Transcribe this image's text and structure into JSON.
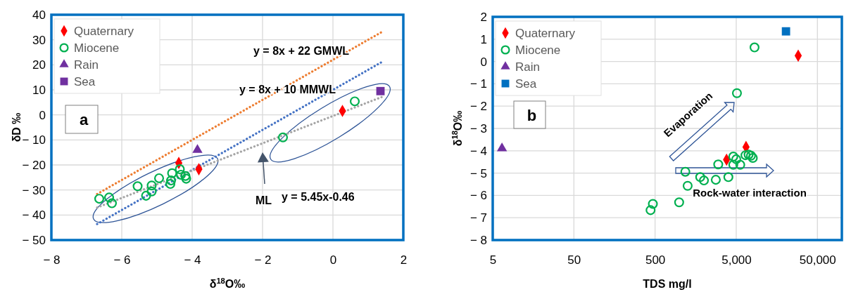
{
  "chart_data": [
    {
      "type": "scatter",
      "xlabel": "δ$^{18}$O‰",
      "ylabel": "δD ‰",
      "xlim": [
        -8,
        2
      ],
      "ylim": [
        -50,
        40
      ],
      "xticks": [
        {
          "value": -8,
          "label": "− 8"
        },
        {
          "value": -6,
          "label": "− 6"
        },
        {
          "value": -4,
          "label": "− 4"
        },
        {
          "value": -2,
          "label": "− 2"
        },
        0,
        2
      ],
      "yticks": [
        {
          "value": -50,
          "label": "− 50"
        },
        {
          "value": -40,
          "label": "− 40"
        },
        {
          "value": -30,
          "label": "− 30"
        },
        {
          "value": -20,
          "label": "− 20"
        },
        {
          "value": -10,
          "label": "− 10"
        },
        0,
        10,
        20,
        30,
        40
      ],
      "grid": true,
      "legend": "top left",
      "series": [
        {
          "name": "Quaternary",
          "color": "#ff0000",
          "marker": "diamond",
          "x": [
            -4.38,
            -3.81,
            0.27
          ],
          "values": [
            -19.2,
            -21.7,
            1.6
          ]
        },
        {
          "name": "Miocene",
          "color": "#00b050",
          "marker": "circle",
          "x": [
            -6.64,
            -6.36,
            -6.28,
            -5.55,
            -5.31,
            -5.15,
            -5.15,
            -4.94,
            -4.6,
            -4.57,
            -4.62,
            -4.35,
            -4.32,
            -4.19,
            -4.17,
            -1.42,
            0.62
          ],
          "values": [
            -33.5,
            -33,
            -35.3,
            -28.5,
            -32.3,
            -28.2,
            -30.6,
            -25.3,
            -26.2,
            -23.3,
            -27.6,
            -21.7,
            -23.9,
            -24.4,
            -25.5,
            -9,
            5.4
          ]
        },
        {
          "name": "Rain",
          "color": "#7030a0",
          "marker": "triangle",
          "x": [
            -3.85
          ],
          "values": [
            -14
          ]
        },
        {
          "name": "Sea",
          "color": "#7030a0",
          "marker": "square",
          "x": [
            1.35
          ],
          "values": [
            9.5
          ]
        },
        {
          "type": "line",
          "color": "#ed7d31",
          "line_style": "dotted",
          "x": [
            -6.7,
            1.4
          ],
          "values": [
            -31.6,
            33.2
          ]
        },
        {
          "type": "line",
          "color": "#4472c4",
          "line_style": "dotted",
          "x": [
            -6.7,
            1.4
          ],
          "values": [
            -43.6,
            21.2
          ]
        },
        {
          "type": "line",
          "color": "#a5a5a5",
          "line_style": "dotted",
          "x": [
            -6.7,
            1.4
          ],
          "values": [
            -37,
            7.2
          ]
        }
      ],
      "annotations": [
        "y = 8x + 22   GMWL",
        "y = 8x + 10  MMWL",
        "ML",
        "y = 5.45x-0.46",
        "a"
      ]
    },
    {
      "type": "scatter",
      "xlabel": "TDS mg/l",
      "ylabel": "δ$^{18}$O‰",
      "log": "x",
      "xlim": [
        5,
        100000
      ],
      "ylim": [
        -8,
        2
      ],
      "xticks": [
        5,
        50,
        500,
        {
          "value": 5000,
          "label": "5,000"
        },
        {
          "value": 50000,
          "label": "50,000"
        }
      ],
      "yticks": [
        {
          "value": -8,
          "label": "− 8"
        },
        {
          "value": -7,
          "label": "− 7"
        },
        {
          "value": -6,
          "label": "− 6"
        },
        {
          "value": -5,
          "label": "− 5"
        },
        {
          "value": -4,
          "label": "− 4"
        },
        {
          "value": -3,
          "label": "− 3"
        },
        {
          "value": -2,
          "label": "− 2"
        },
        {
          "value": -1,
          "label": "− 1"
        },
        0,
        1,
        2
      ],
      "grid": true,
      "legend": "top left",
      "series": [
        {
          "name": "Quaternary",
          "color": "#ff0000",
          "marker": "diamond",
          "x": [
            3800,
            6600,
            29000
          ],
          "values": [
            -4.4,
            -3.83,
            0.26
          ]
        },
        {
          "name": "Miocene",
          "color": "#00b050",
          "marker": "circle",
          "x": [
            8400,
            5100,
            440,
            470,
            990,
            1180,
            1260,
            1800,
            2000,
            2800,
            3000,
            4000,
            4600,
            4600,
            5000,
            5600,
            6500,
            7100,
            7600,
            8000
          ],
          "values": [
            0.63,
            -1.42,
            -6.66,
            -6.38,
            -6.31,
            -4.94,
            -5.57,
            -5.18,
            -5.33,
            -5.3,
            -4.61,
            -5.18,
            -4.26,
            -4.63,
            -4.38,
            -4.63,
            -4.2,
            -4.17,
            -4.22,
            -4.32
          ]
        },
        {
          "name": "Rain",
          "color": "#7030a0",
          "marker": "triangle",
          "x": [
            6.5
          ],
          "values": [
            -3.89
          ]
        },
        {
          "name": "Sea",
          "color": "#0070c0",
          "marker": "square",
          "x": [
            20500
          ],
          "values": [
            1.35
          ]
        }
      ],
      "annotations": [
        "b",
        "Evaporation",
        "Rock-water interaction"
      ]
    }
  ]
}
